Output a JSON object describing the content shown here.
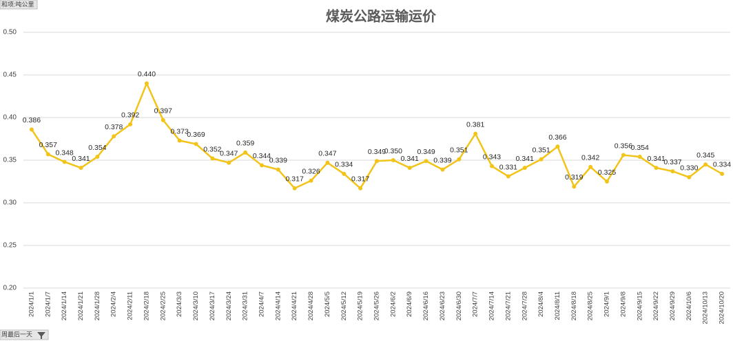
{
  "chart_data": {
    "type": "line",
    "title": "煤炭公路运输运价",
    "value_field_button": "和项:吨公里",
    "axis_field_button": "周最后一天",
    "categories": [
      "2024/1/1",
      "2024/1/7",
      "2024/1/14",
      "2024/1/21",
      "2024/1/28",
      "2024/2/4",
      "2024/2/11",
      "2024/2/18",
      "2024/2/25",
      "2024/3/3",
      "2024/3/10",
      "2024/3/17",
      "2024/3/24",
      "2024/3/31",
      "2024/4/7",
      "2024/4/14",
      "2024/4/21",
      "2024/4/28",
      "2024/5/5",
      "2024/5/12",
      "2024/5/19",
      "2024/5/26",
      "2024/6/2",
      "2024/6/9",
      "2024/6/16",
      "2024/6/23",
      "2024/6/30",
      "2024/7/7",
      "2024/7/14",
      "2024/7/21",
      "2024/7/28",
      "2024/8/4",
      "2024/8/11",
      "2024/8/18",
      "2024/8/25",
      "2024/9/1",
      "2024/9/8",
      "2024/9/15",
      "2024/9/22",
      "2024/9/29",
      "2024/10/6",
      "2024/10/13",
      "2024/10/20"
    ],
    "values": [
      0.386,
      0.357,
      0.348,
      0.341,
      0.354,
      0.378,
      0.392,
      0.44,
      0.397,
      0.373,
      0.369,
      0.352,
      0.347,
      0.359,
      0.344,
      0.339,
      0.317,
      0.326,
      0.347,
      0.334,
      0.317,
      0.349,
      0.35,
      0.341,
      0.349,
      0.339,
      0.351,
      0.381,
      0.343,
      0.331,
      0.341,
      0.351,
      0.366,
      0.319,
      0.342,
      0.325,
      0.356,
      0.354,
      0.341,
      0.337,
      0.33,
      0.345,
      0.334
    ],
    "value_labels": [
      "0.386",
      "0.357",
      "0.348",
      "0.341",
      "0.354",
      "0.378",
      "0.392",
      "0.440",
      "0.397",
      "0.373",
      "0.369",
      "0.352",
      "0.347",
      "0.359",
      "0.344",
      "0.339",
      "0.317",
      "0.326",
      "0.347",
      "0.334",
      "0.317",
      "0.349",
      "0.350",
      "0.341",
      "0.349",
      "0.339",
      "0.351",
      "0.381",
      "0.343",
      "0.331",
      "0.341",
      "0.351",
      "0.366",
      "0.319",
      "0.342",
      "0.325",
      "0.356",
      "0.354",
      "0.341",
      "0.337",
      "0.330",
      "0.345",
      "0.334"
    ],
    "color": "#f2c318",
    "ylim": [
      0.2,
      0.5
    ],
    "yticks": [
      {
        "value": 0.2,
        "label": "0.20"
      },
      {
        "value": 0.25,
        "label": "0.25"
      },
      {
        "value": 0.3,
        "label": "0.30"
      },
      {
        "value": 0.35,
        "label": "0.35"
      },
      {
        "value": 0.4,
        "label": "0.40"
      },
      {
        "value": 0.45,
        "label": "0.45"
      },
      {
        "value": 0.5,
        "label": "0.50"
      }
    ],
    "grid": true
  }
}
